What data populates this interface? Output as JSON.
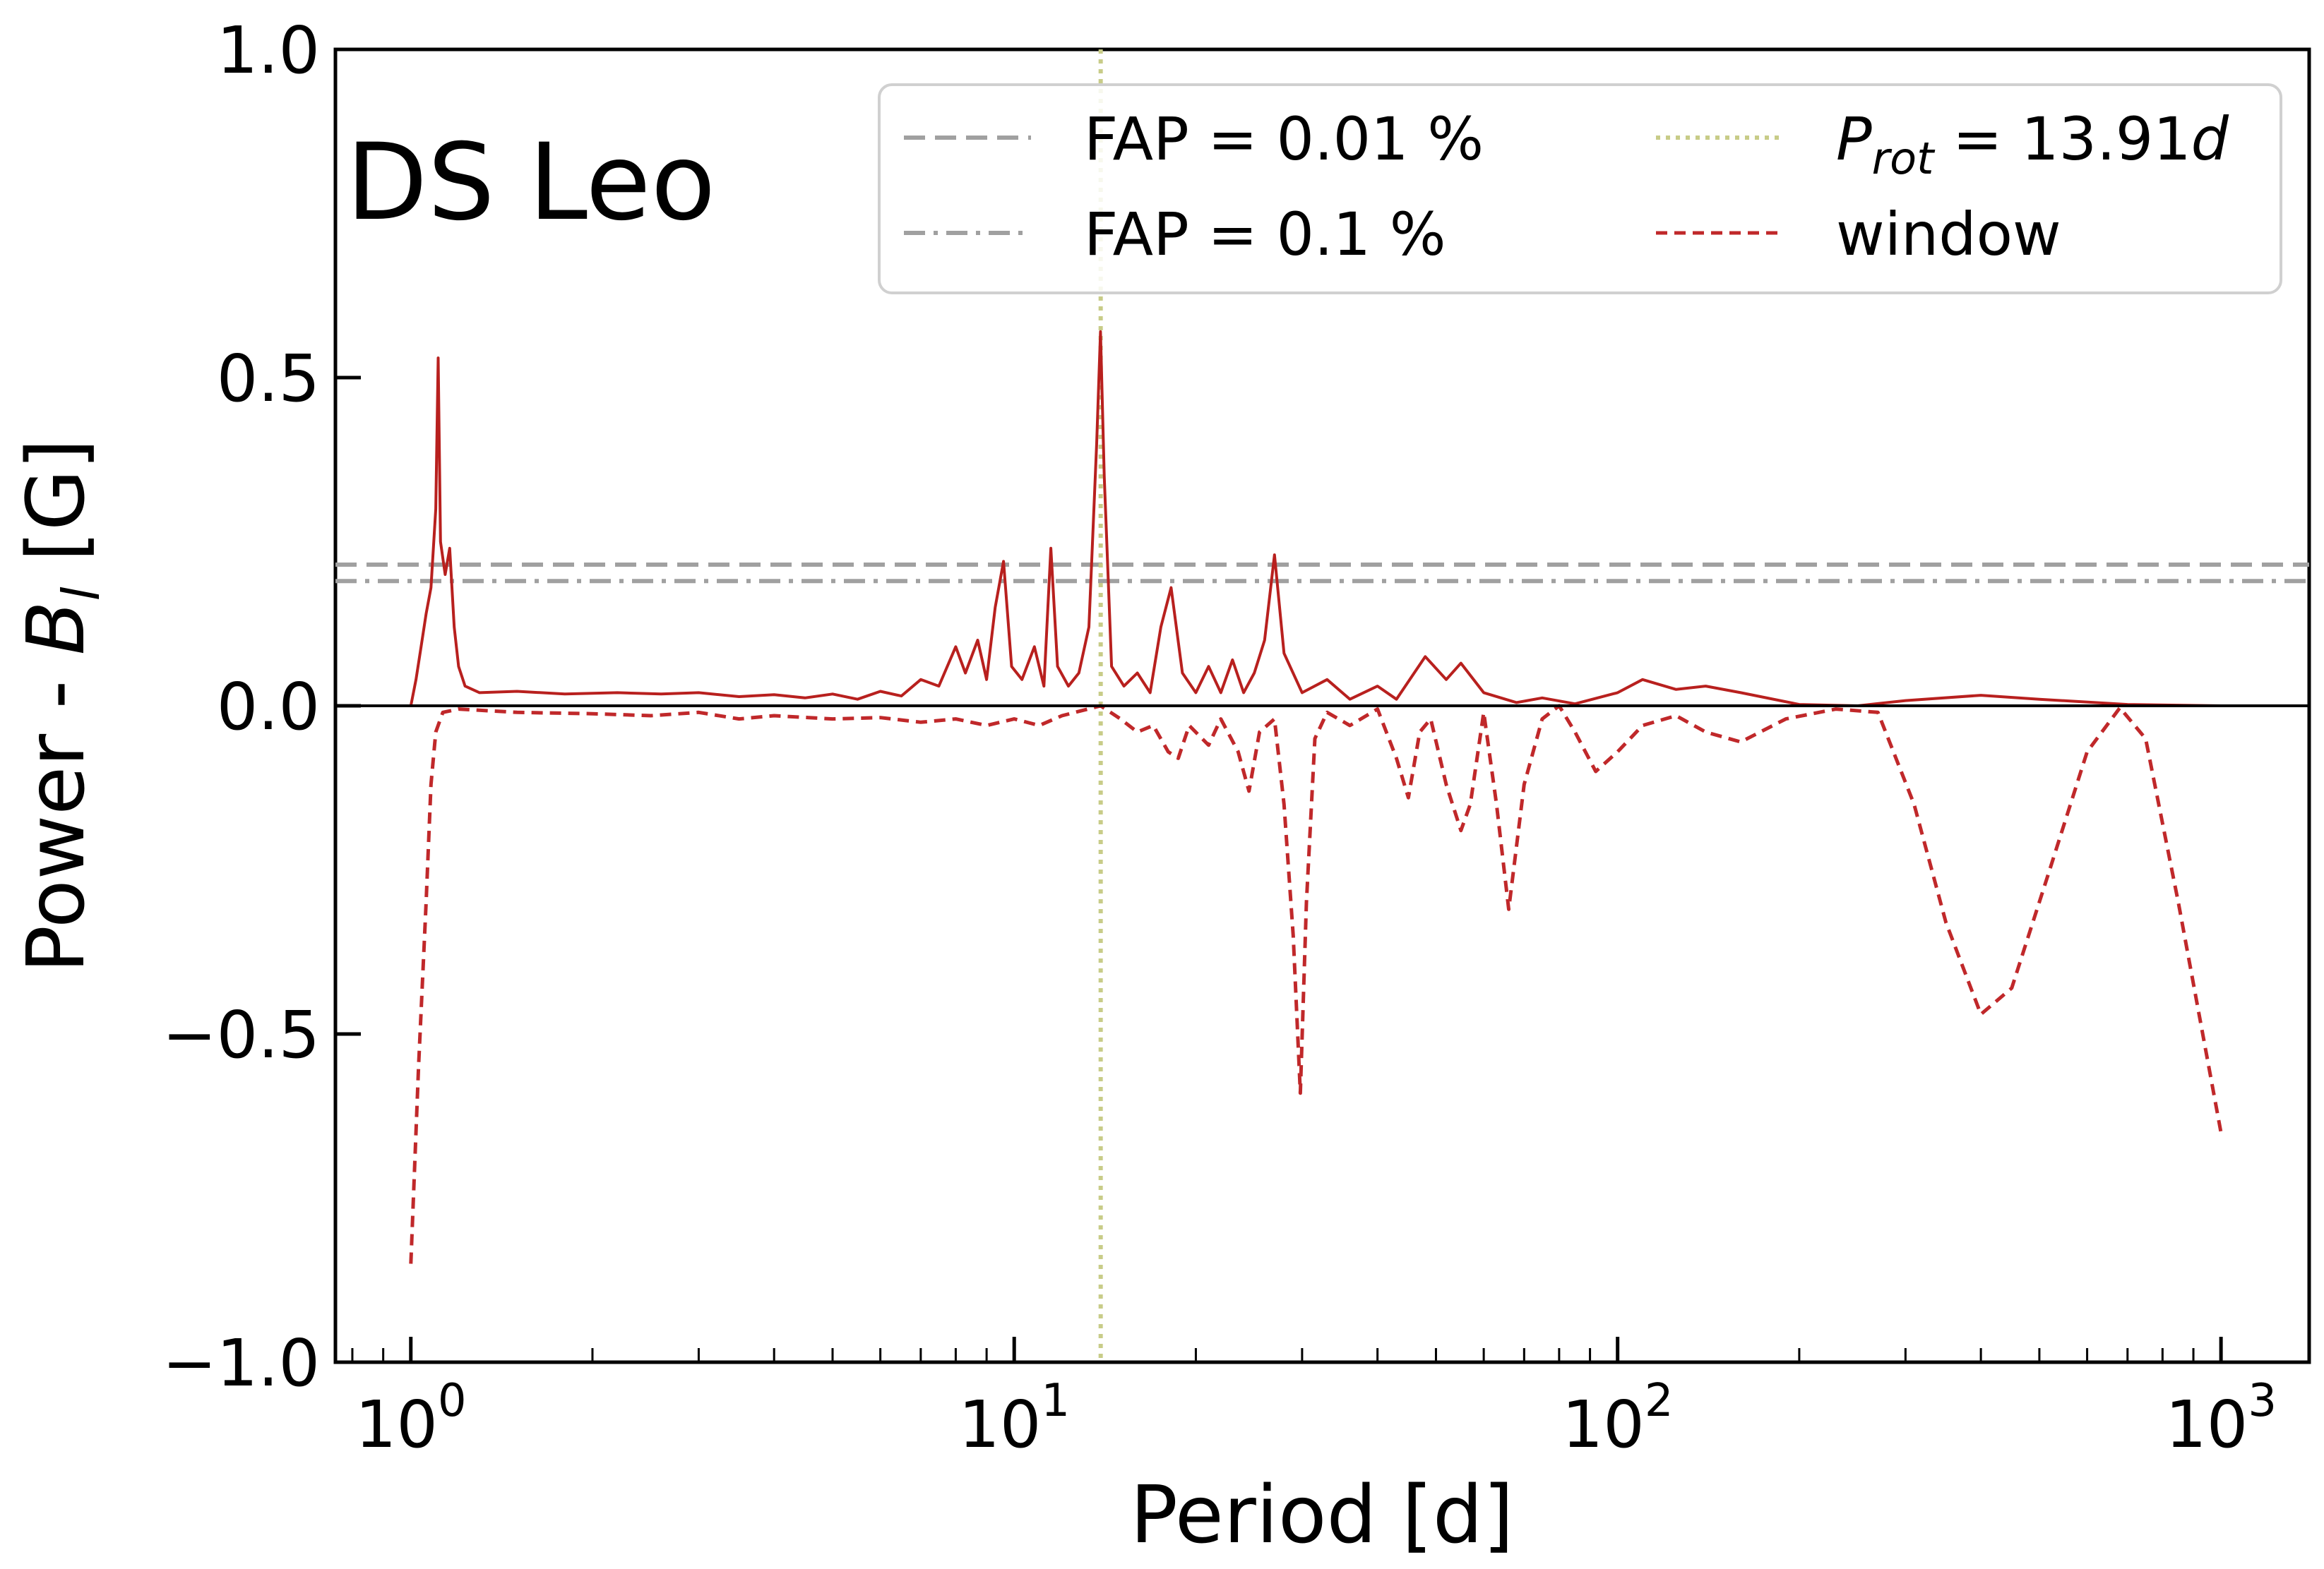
{
  "chart_data": {
    "type": "line",
    "panel_label": "DS Leo",
    "xlabel": "Period [d]",
    "ylabel": "Power - B_l  [G]",
    "xscale": "log",
    "xlim": [
      0.75,
      1400
    ],
    "ylim": [
      -1.0,
      1.0
    ],
    "x_ticks": [
      {
        "value": 1,
        "base": "10",
        "exp": "0"
      },
      {
        "value": 10,
        "base": "10",
        "exp": "1"
      },
      {
        "value": 100,
        "base": "10",
        "exp": "2"
      },
      {
        "value": 1000,
        "base": "10",
        "exp": "3"
      }
    ],
    "y_ticks": [
      {
        "value": 1.0,
        "label": "1.0"
      },
      {
        "value": 0.5,
        "label": "0.5"
      },
      {
        "value": 0.0,
        "label": "0.0"
      },
      {
        "value": -0.5,
        "label": "−0.5"
      },
      {
        "value": -1.0,
        "label": "−1.0"
      }
    ],
    "grid": false,
    "legend_position": "top-right",
    "reference_lines": [
      {
        "name": "FAP = 0.01 %",
        "orientation": "horizontal",
        "value": 0.215,
        "style": "dashed",
        "color": "#a0a0a0"
      },
      {
        "name": "FAP = 0.1 %",
        "orientation": "horizontal",
        "value": 0.19,
        "style": "dashdot",
        "color": "#a0a0a0"
      },
      {
        "name": "P_rot = 13.91d",
        "orientation": "vertical",
        "value": 13.91,
        "style": "dotted",
        "color": "#c8cc88"
      }
    ],
    "legend": {
      "col1": [
        {
          "label": "FAP = 0.01 %",
          "style": "dashed",
          "color": "#a0a0a0"
        },
        {
          "label": "FAP = 0.1 %",
          "style": "dashdot",
          "color": "#a0a0a0"
        }
      ],
      "col2": [
        {
          "label_main": "P",
          "label_sub": "rot",
          "label_rest": " = 13.91",
          "label_unit": "d",
          "style": "dotted",
          "color": "#c8cc88"
        },
        {
          "label": "window",
          "style": "dashed",
          "color": "#c0282a"
        }
      ]
    },
    "series": [
      {
        "name": "",
        "color": "#b8201e",
        "style": "solid",
        "points": [
          [
            1.0,
            0.0
          ],
          [
            1.02,
            0.04
          ],
          [
            1.04,
            0.09
          ],
          [
            1.06,
            0.14
          ],
          [
            1.08,
            0.18
          ],
          [
            1.1,
            0.3
          ],
          [
            1.11,
            0.53
          ],
          [
            1.12,
            0.25
          ],
          [
            1.14,
            0.2
          ],
          [
            1.16,
            0.24
          ],
          [
            1.18,
            0.12
          ],
          [
            1.2,
            0.06
          ],
          [
            1.23,
            0.03
          ],
          [
            1.3,
            0.02
          ],
          [
            1.5,
            0.022
          ],
          [
            1.8,
            0.018
          ],
          [
            2.2,
            0.02
          ],
          [
            2.6,
            0.018
          ],
          [
            3.0,
            0.02
          ],
          [
            3.5,
            0.014
          ],
          [
            4.0,
            0.017
          ],
          [
            4.5,
            0.012
          ],
          [
            5.0,
            0.018
          ],
          [
            5.5,
            0.01
          ],
          [
            6.0,
            0.022
          ],
          [
            6.5,
            0.015
          ],
          [
            7.0,
            0.04
          ],
          [
            7.5,
            0.03
          ],
          [
            8.0,
            0.09
          ],
          [
            8.3,
            0.05
          ],
          [
            8.7,
            0.1
          ],
          [
            9.0,
            0.04
          ],
          [
            9.3,
            0.15
          ],
          [
            9.6,
            0.22
          ],
          [
            9.9,
            0.06
          ],
          [
            10.3,
            0.04
          ],
          [
            10.8,
            0.09
          ],
          [
            11.2,
            0.03
          ],
          [
            11.5,
            0.24
          ],
          [
            11.8,
            0.06
          ],
          [
            12.3,
            0.03
          ],
          [
            12.8,
            0.05
          ],
          [
            13.3,
            0.12
          ],
          [
            13.7,
            0.4
          ],
          [
            13.9,
            0.57
          ],
          [
            14.1,
            0.35
          ],
          [
            14.5,
            0.06
          ],
          [
            15.2,
            0.03
          ],
          [
            16.0,
            0.05
          ],
          [
            16.8,
            0.02
          ],
          [
            17.5,
            0.12
          ],
          [
            18.2,
            0.18
          ],
          [
            19.0,
            0.05
          ],
          [
            20.0,
            0.02
          ],
          [
            21.0,
            0.06
          ],
          [
            22.0,
            0.02
          ],
          [
            23.0,
            0.07
          ],
          [
            24.0,
            0.02
          ],
          [
            25.0,
            0.05
          ],
          [
            26.0,
            0.1
          ],
          [
            27.0,
            0.23
          ],
          [
            28.0,
            0.08
          ],
          [
            30.0,
            0.02
          ],
          [
            33.0,
            0.04
          ],
          [
            36.0,
            0.01
          ],
          [
            40.0,
            0.03
          ],
          [
            43.0,
            0.01
          ],
          [
            48.0,
            0.075
          ],
          [
            52.0,
            0.04
          ],
          [
            55.0,
            0.065
          ],
          [
            60.0,
            0.02
          ],
          [
            68.0,
            0.005
          ],
          [
            75.0,
            0.012
          ],
          [
            85.0,
            0.003
          ],
          [
            100.0,
            0.02
          ],
          [
            110.0,
            0.04
          ],
          [
            125.0,
            0.025
          ],
          [
            140.0,
            0.03
          ],
          [
            160.0,
            0.02
          ],
          [
            200.0,
            0.002
          ],
          [
            250.0,
            0.0
          ],
          [
            300.0,
            0.008
          ],
          [
            400.0,
            0.016
          ],
          [
            500.0,
            0.01
          ],
          [
            700.0,
            0.002
          ],
          [
            1000.0,
            0.0
          ]
        ]
      },
      {
        "name": "window",
        "color": "#c0282a",
        "style": "dashed",
        "points": [
          [
            1.0,
            -0.85
          ],
          [
            1.03,
            -0.55
          ],
          [
            1.06,
            -0.3
          ],
          [
            1.08,
            -0.12
          ],
          [
            1.1,
            -0.04
          ],
          [
            1.13,
            -0.01
          ],
          [
            1.2,
            -0.005
          ],
          [
            1.5,
            -0.01
          ],
          [
            2.0,
            -0.012
          ],
          [
            2.5,
            -0.015
          ],
          [
            3.0,
            -0.01
          ],
          [
            3.5,
            -0.02
          ],
          [
            4.0,
            -0.015
          ],
          [
            5.0,
            -0.02
          ],
          [
            6.0,
            -0.018
          ],
          [
            7.0,
            -0.025
          ],
          [
            8.0,
            -0.02
          ],
          [
            9.0,
            -0.03
          ],
          [
            10.0,
            -0.02
          ],
          [
            11.0,
            -0.03
          ],
          [
            12.0,
            -0.015
          ],
          [
            13.91,
            0.0
          ],
          [
            15.0,
            -0.02
          ],
          [
            16.0,
            -0.04
          ],
          [
            17.0,
            -0.03
          ],
          [
            18.0,
            -0.07
          ],
          [
            18.7,
            -0.08
          ],
          [
            19.5,
            -0.03
          ],
          [
            21.0,
            -0.06
          ],
          [
            22.0,
            -0.02
          ],
          [
            23.5,
            -0.07
          ],
          [
            24.5,
            -0.13
          ],
          [
            25.5,
            -0.04
          ],
          [
            27.0,
            -0.02
          ],
          [
            28.0,
            -0.15
          ],
          [
            29.0,
            -0.35
          ],
          [
            29.8,
            -0.59
          ],
          [
            30.5,
            -0.3
          ],
          [
            31.5,
            -0.05
          ],
          [
            33.0,
            -0.01
          ],
          [
            36.0,
            -0.03
          ],
          [
            40.0,
            -0.005
          ],
          [
            43.0,
            -0.08
          ],
          [
            45.0,
            -0.14
          ],
          [
            47.0,
            -0.04
          ],
          [
            49.0,
            -0.02
          ],
          [
            52.0,
            -0.12
          ],
          [
            55.0,
            -0.19
          ],
          [
            57.0,
            -0.15
          ],
          [
            60.0,
            -0.01
          ],
          [
            63.0,
            -0.15
          ],
          [
            66.0,
            -0.31
          ],
          [
            70.0,
            -0.12
          ],
          [
            75.0,
            -0.02
          ],
          [
            80.0,
            0.0
          ],
          [
            85.0,
            -0.04
          ],
          [
            92.0,
            -0.1
          ],
          [
            100.0,
            -0.07
          ],
          [
            110.0,
            -0.03
          ],
          [
            125.0,
            -0.015
          ],
          [
            140.0,
            -0.04
          ],
          [
            160.0,
            -0.055
          ],
          [
            190.0,
            -0.02
          ],
          [
            230.0,
            -0.005
          ],
          [
            270.0,
            -0.01
          ],
          [
            310.0,
            -0.15
          ],
          [
            350.0,
            -0.33
          ],
          [
            400.0,
            -0.47
          ],
          [
            450.0,
            -0.43
          ],
          [
            520.0,
            -0.25
          ],
          [
            600.0,
            -0.07
          ],
          [
            680.0,
            -0.003
          ],
          [
            750.0,
            -0.05
          ],
          [
            850.0,
            -0.3
          ],
          [
            1000.0,
            -0.65
          ]
        ]
      }
    ]
  }
}
